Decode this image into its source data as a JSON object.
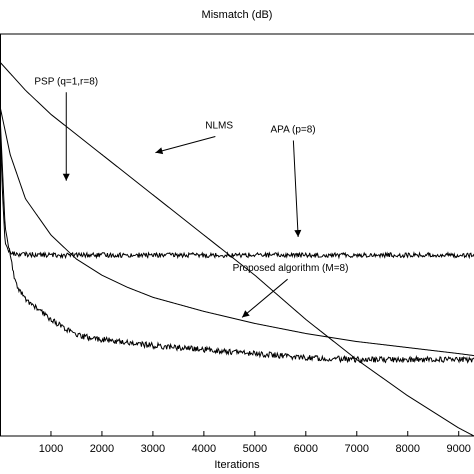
{
  "chart_data": {
    "type": "line",
    "title": "Mismatch (dB)",
    "xlabel": "Iterations",
    "ylabel": "",
    "xlim": [
      0,
      9300
    ],
    "ylim": [
      0,
      1
    ],
    "x_ticks": [
      1000,
      2000,
      3000,
      4000,
      5000,
      6000,
      7000,
      8000,
      9000
    ],
    "x_tick_labels": [
      "1000",
      "2000",
      "3000",
      "4000",
      "5000",
      "6000",
      "7000",
      "8000",
      "9000"
    ],
    "grid": false,
    "series": [
      {
        "name": "NLMS",
        "x": [
          0,
          500,
          1000,
          2000,
          3000,
          4000,
          5000,
          6000,
          7000,
          8000,
          9000,
          9300
        ],
        "y": [
          0.93,
          0.86,
          0.8,
          0.7,
          0.6,
          0.5,
          0.4,
          0.29,
          0.19,
          0.1,
          0.02,
          0.0
        ]
      },
      {
        "name": "PSP (q=1,r=8)",
        "x": [
          0,
          200,
          500,
          1000,
          1500,
          2000,
          2500,
          3000,
          4000,
          5000,
          6000,
          7000,
          8000,
          9000,
          9300
        ],
        "y": [
          0.82,
          0.7,
          0.59,
          0.5,
          0.44,
          0.4,
          0.37,
          0.345,
          0.31,
          0.28,
          0.255,
          0.235,
          0.22,
          0.205,
          0.2
        ]
      },
      {
        "name": "APA (p=8)",
        "x": [
          0,
          50,
          100,
          200,
          400,
          1000,
          2000,
          3000,
          4000,
          5000,
          6000,
          7000,
          8000,
          9000,
          9300
        ],
        "y": [
          0.78,
          0.6,
          0.48,
          0.455,
          0.452,
          0.45,
          0.45,
          0.45,
          0.45,
          0.45,
          0.45,
          0.45,
          0.45,
          0.45,
          0.45
        ]
      },
      {
        "name": "Proposed algorithm (M=8)",
        "x": [
          0,
          100,
          300,
          500,
          800,
          1000,
          1500,
          2000,
          3000,
          4000,
          5000,
          6000,
          7000,
          8000,
          9000,
          9300
        ],
        "y": [
          0.8,
          0.52,
          0.38,
          0.34,
          0.31,
          0.29,
          0.25,
          0.24,
          0.225,
          0.215,
          0.205,
          0.195,
          0.19,
          0.19,
          0.19,
          0.19
        ]
      }
    ],
    "annotations": [
      {
        "text": "PSP (q=1,r=8)",
        "text_x": 1300,
        "text_y": 0.875,
        "arrow_to_x": 1300,
        "arrow_to_y": 0.635
      },
      {
        "text": "NLMS",
        "text_x": 4300,
        "text_y": 0.765,
        "arrow_to_x": 3050,
        "arrow_to_y": 0.705
      },
      {
        "text": "APA (p=8)",
        "text_x": 5750,
        "text_y": 0.755,
        "arrow_to_x": 5850,
        "arrow_to_y": 0.495
      },
      {
        "text": "Proposed algorithm (M=8)",
        "text_x": 5700,
        "text_y": 0.41,
        "arrow_to_x": 4750,
        "arrow_to_y": 0.295
      }
    ]
  }
}
